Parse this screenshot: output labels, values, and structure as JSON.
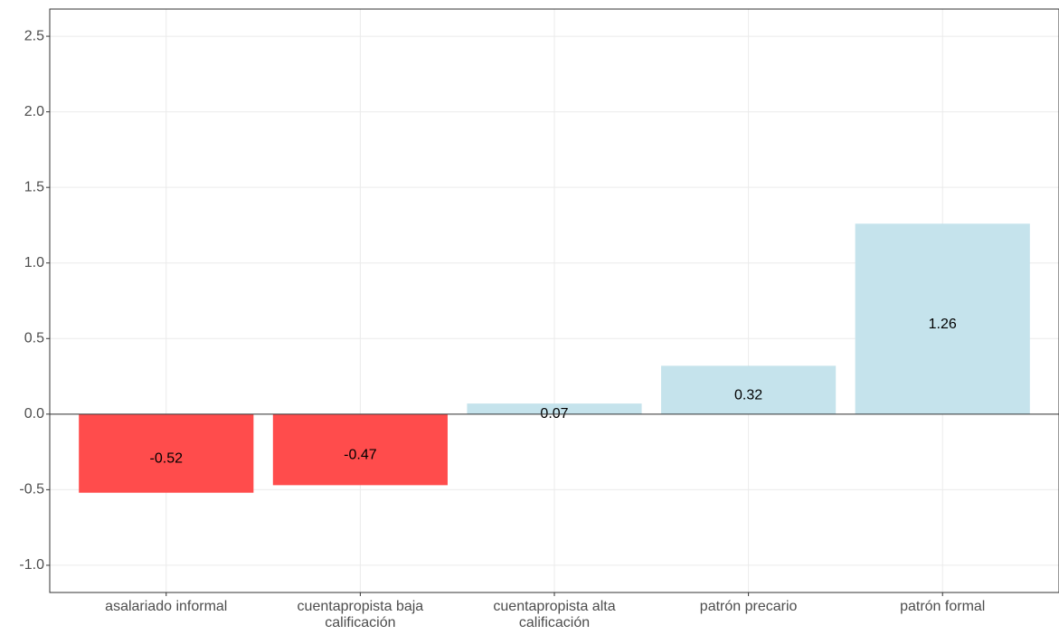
{
  "chart_data": {
    "type": "bar",
    "categories": [
      "asalariado informal",
      "cuentapropista baja\ncalificación",
      "cuentapropista alta\ncalificación",
      "patrón precario",
      "patrón formal"
    ],
    "values": [
      -0.52,
      -0.47,
      0.07,
      0.32,
      1.26
    ],
    "colors": [
      "#ff4c4c",
      "#ff4c4c",
      "#c5e3ec",
      "#c5e3ec",
      "#c5e3ec"
    ],
    "ylim": [
      -1.18,
      2.68
    ],
    "yticks": [
      {
        "value": -1,
        "label": "-1.0"
      },
      -0.5,
      {
        "value": 0,
        "label": "0.0"
      },
      0.5,
      {
        "value": 1,
        "label": "1.0"
      },
      1.5,
      {
        "value": 2,
        "label": "2.0"
      },
      2.5
    ],
    "grid": true
  }
}
